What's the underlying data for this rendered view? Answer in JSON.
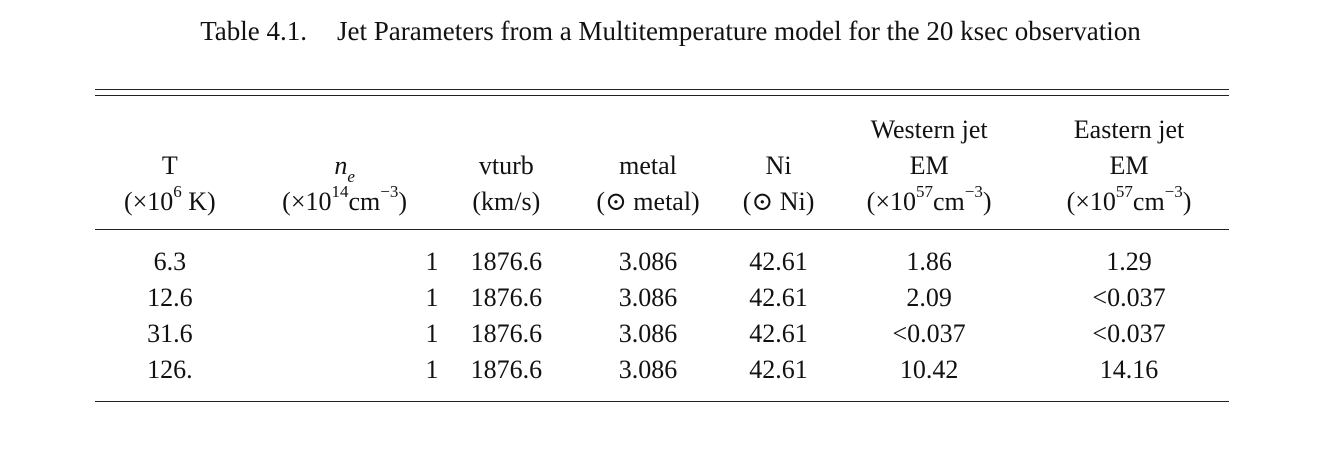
{
  "caption": {
    "label": "Table 4.1.",
    "title": "Jet Parameters from a Multitemperature model for the 20 ksec observation"
  },
  "header": {
    "row1": {
      "western": "Western jet",
      "eastern": "Eastern jet"
    },
    "row2": {
      "T": "T",
      "ne_base": "n",
      "ne_sub": "e",
      "vturb": "vturb",
      "metal": "metal",
      "ni": "Ni",
      "western": "EM",
      "eastern": "EM"
    },
    "row3": {
      "T_pre": "(×10",
      "T_exp": "6",
      "T_post": " K)",
      "ne_pre": "(×10",
      "ne_exp": "14",
      "ne_mid": "cm",
      "ne_exp2": "−3",
      "ne_post": ")",
      "vturb": "(km/s)",
      "metal": "(⊙ metal)",
      "ni": "(⊙ Ni)",
      "w_pre": "(×10",
      "w_exp": "57",
      "w_mid": "cm",
      "w_exp2": "−3",
      "w_post": ")",
      "e_pre": "(×10",
      "e_exp": "57",
      "e_mid": "cm",
      "e_exp2": "−3",
      "e_post": ")"
    }
  },
  "rows": [
    {
      "T": "6.3",
      "ne": "1",
      "vturb": "1876.6",
      "metal": "3.086",
      "ni": "42.61",
      "western": "1.86",
      "eastern": "1.29"
    },
    {
      "T": "12.6",
      "ne": "1",
      "vturb": "1876.6",
      "metal": "3.086",
      "ni": "42.61",
      "western": "2.09",
      "eastern": "<0.037"
    },
    {
      "T": "31.6",
      "ne": "1",
      "vturb": "1876.6",
      "metal": "3.086",
      "ni": "42.61",
      "western": "<0.037",
      "eastern": "<0.037"
    },
    {
      "T": "126.",
      "ne": "1",
      "vturb": "1876.6",
      "metal": "3.086",
      "ni": "42.61",
      "western": "10.42",
      "eastern": "14.16"
    }
  ]
}
